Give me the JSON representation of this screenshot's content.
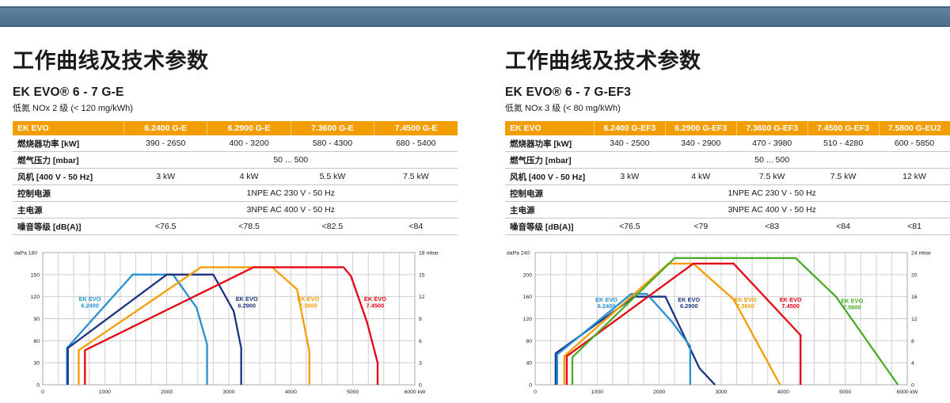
{
  "colors": {
    "top_bar": "#527794",
    "table_header_orange": "#f29d00",
    "curve_lightblue": "#2590d2",
    "curve_navy": "#1c3383",
    "curve_orange": "#f59c00",
    "curve_red": "#e30613",
    "curve_green": "#4aab26"
  },
  "panels": [
    {
      "title": "工作曲线及技术参数",
      "model": "EK EVO® 6 - 7 G-E",
      "nox": "低氮 NOx 2 级 (< 120 mg/kWh)",
      "table": {
        "header": [
          "EK EVO",
          "6.2400 G-E",
          "6.2900 G-E",
          "7.3600 G-E",
          "7.4500 G-E"
        ],
        "rows": [
          {
            "label": "燃烧器功率 [kW]",
            "cells": [
              "390 - 2650",
              "400 - 3200",
              "580 - 4300",
              "680 - 5400"
            ]
          },
          {
            "label": "燃气压力 [mbar]",
            "span": "50 ... 500"
          },
          {
            "label": "风机 [400 V - 50 Hz]",
            "cells": [
              "3 kW",
              "4 kW",
              "5.5 kW",
              "7.5 kW"
            ]
          },
          {
            "label": "控制电源",
            "span": "1NPE AC 230 V - 50 Hz"
          },
          {
            "label": "主电源",
            "span": "3NPE AC 400 V - 50 Hz"
          },
          {
            "label": "噪音等级 [dB(A)]",
            "cells": [
              "<76.5",
              "<78.5",
              "<82.5",
              "<84"
            ]
          }
        ]
      }
    },
    {
      "title": "工作曲线及技术参数",
      "model": "EK EVO® 6 - 7 G-EF3",
      "nox": "低氮 NOx 3 级 (< 80 mg/kWh)",
      "table": {
        "header": [
          "EK EVO",
          "6.2400 G-EF3",
          "6.2900 G-EF3",
          "7.3600 G-EF3",
          "7.4500 G-EF3",
          "7.5800 G-EU2"
        ],
        "rows": [
          {
            "label": "燃烧器功率 [kW]",
            "cells": [
              "340 - 2500",
              "340 - 2900",
              "470 - 3980",
              "510 - 4280",
              "600 - 5850"
            ]
          },
          {
            "label": "燃气压力 [mbar]",
            "span": "50 ... 500"
          },
          {
            "label": "风机 [400 V - 50 Hz]",
            "cells": [
              "3 kW",
              "4 kW",
              "7.5 kW",
              "7.5 kW",
              "12 kW"
            ]
          },
          {
            "label": "控制电源",
            "span": "1NPE AC 230 V - 50 Hz"
          },
          {
            "label": "主电源",
            "span": "3NPE AC 400 V - 50 Hz"
          },
          {
            "label": "噪音等级 [dB(A)]",
            "cells": [
              "<76.5",
              "<79",
              "<83",
              "<84",
              "<81"
            ]
          }
        ]
      }
    }
  ],
  "chart_data": [
    {
      "type": "line",
      "top_left_label": "daPa 180",
      "top_right_label": "18 mbar",
      "x_end_label": "6000 kW",
      "x_range": [
        0,
        6000
      ],
      "x_tick_major": 1000,
      "x_tick_minor": 250,
      "y_left_range": [
        0,
        180
      ],
      "y_left_step": 30,
      "y_right_range": [
        0,
        18
      ],
      "grid": true,
      "series": [
        {
          "name": "EK EVO 6.2400",
          "color": "#2590d2",
          "label": [
            "EK EVO",
            "6.2400"
          ],
          "label_pos": [
            760,
            112
          ],
          "points": [
            [
              390,
              0
            ],
            [
              390,
              50
            ],
            [
              1450,
              150
            ],
            [
              2100,
              150
            ],
            [
              2480,
              105
            ],
            [
              2650,
              55
            ],
            [
              2650,
              0
            ]
          ]
        },
        {
          "name": "EK EVO 6.2900",
          "color": "#1c3383",
          "label": [
            "EK EVO",
            "6.2900"
          ],
          "label_pos": [
            3290,
            112
          ],
          "points": [
            [
              405,
              0
            ],
            [
              405,
              50
            ],
            [
              2000,
              150
            ],
            [
              2750,
              150
            ],
            [
              3080,
              100
            ],
            [
              3200,
              50
            ],
            [
              3200,
              0
            ]
          ]
        },
        {
          "name": "EK EVO 7.3600",
          "color": "#f59c00",
          "label": [
            "EK EVO",
            "7.3600"
          ],
          "label_pos": [
            4280,
            112
          ],
          "points": [
            [
              580,
              0
            ],
            [
              580,
              47
            ],
            [
              2550,
              160
            ],
            [
              3700,
              160
            ],
            [
              4100,
              130
            ],
            [
              4300,
              45
            ],
            [
              4300,
              0
            ]
          ]
        },
        {
          "name": "EK EVO 7.4500",
          "color": "#e30613",
          "label": [
            "EK EVO",
            "7.4500"
          ],
          "label_pos": [
            5360,
            112
          ],
          "points": [
            [
              680,
              0
            ],
            [
              680,
              47
            ],
            [
              3400,
              160
            ],
            [
              4850,
              160
            ],
            [
              4970,
              148
            ],
            [
              5230,
              85
            ],
            [
              5400,
              30
            ],
            [
              5400,
              0
            ]
          ]
        }
      ]
    },
    {
      "type": "line",
      "top_left_label": "daPa 240",
      "top_right_label": "24 mbar",
      "x_end_label": "6000 kW",
      "x_range": [
        0,
        6000
      ],
      "x_tick_major": 1000,
      "x_tick_minor": 250,
      "y_left_range": [
        0,
        240
      ],
      "y_left_step": 40,
      "y_right_range": [
        0,
        24
      ],
      "grid": true,
      "series": [
        {
          "name": "EK EVO 6.2900",
          "color": "#1c3383",
          "label": [
            "EK EVO",
            "6.2900"
          ],
          "label_pos": [
            2480,
            148
          ],
          "points": [
            [
              330,
              0
            ],
            [
              330,
              57
            ],
            [
              1600,
              160
            ],
            [
              2100,
              160
            ],
            [
              2650,
              30
            ],
            [
              2900,
              0
            ]
          ]
        },
        {
          "name": "EK EVO 6.2400",
          "color": "#2590d2",
          "label": [
            "EK EVO",
            "6.2400"
          ],
          "label_pos": [
            1150,
            148
          ],
          "points": [
            [
              355,
              0
            ],
            [
              355,
              55
            ],
            [
              1550,
              165
            ],
            [
              1800,
              165
            ],
            [
              2200,
              115
            ],
            [
              2500,
              70
            ],
            [
              2500,
              0
            ]
          ]
        },
        {
          "name": "EK EVO 7.3600",
          "color": "#f59c00",
          "label": [
            "EK EVO",
            "7.3600"
          ],
          "label_pos": [
            3390,
            148
          ],
          "points": [
            [
              470,
              0
            ],
            [
              470,
              52
            ],
            [
              2150,
              220
            ],
            [
              2550,
              220
            ],
            [
              3200,
              155
            ],
            [
              3950,
              0
            ]
          ]
        },
        {
          "name": "EK EVO 7.4500",
          "color": "#e30613",
          "label": [
            "EK EVO",
            "7.4500"
          ],
          "label_pos": [
            4120,
            148
          ],
          "points": [
            [
              510,
              0
            ],
            [
              510,
              52
            ],
            [
              2550,
              220
            ],
            [
              3200,
              220
            ],
            [
              4280,
              90
            ],
            [
              4280,
              0
            ]
          ]
        },
        {
          "name": "EK EVO 7.5800",
          "color": "#4aab26",
          "label": [
            "EK EVO",
            "7.5800"
          ],
          "label_pos": [
            5110,
            146
          ],
          "points": [
            [
              600,
              0
            ],
            [
              600,
              50
            ],
            [
              2250,
              230
            ],
            [
              4200,
              230
            ],
            [
              4850,
              160
            ],
            [
              5850,
              0
            ]
          ]
        }
      ]
    }
  ]
}
